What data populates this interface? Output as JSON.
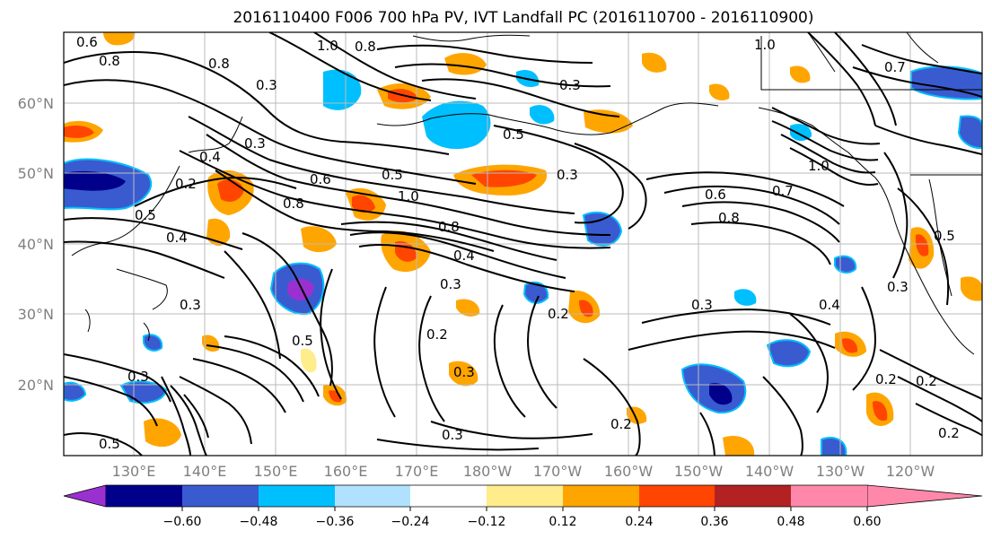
{
  "title": "2016110400 F006 700 hPa PV, IVT Landfall PC (2016110700 - 2016110900)",
  "map": {
    "lat_labels": [
      "60°N",
      "50°N",
      "40°N",
      "30°N",
      "20°N"
    ],
    "lon_labels": [
      "130°E",
      "140°E",
      "150°E",
      "160°E",
      "170°E",
      "180°W",
      "170°W",
      "160°W",
      "150°W",
      "140°W",
      "130°W",
      "120°W"
    ],
    "grid": true,
    "contour_labels": [
      "0.6",
      "0.8",
      "1.0",
      "0.8",
      "0.8",
      "0.3",
      "0.4",
      "1.0",
      "0.8",
      "0.2",
      "0.3",
      "0.5",
      "0.4",
      "0.3",
      "1.0",
      "0.6",
      "0.8",
      "0.6",
      "0.7",
      "0.8",
      "1.0",
      "0.5",
      "0.4",
      "0.5",
      "0.3",
      "0.3",
      "0.5",
      "0.2",
      "0.3",
      "0.3",
      "0.2",
      "0.3",
      "0.4",
      "0.3",
      "0.2",
      "0.2",
      "0.2",
      "0.3",
      "0.2",
      "0.5",
      "0.3",
      "0.5",
      "0.7"
    ]
  },
  "colorbar": {
    "colors": [
      "#9b30d0",
      "#00008b",
      "#3a5bd0",
      "#00bfff",
      "#b0e2ff",
      "#ffffff",
      "#ffec8b",
      "#ffa500",
      "#ff4500",
      "#b22222",
      "#ff88aa"
    ],
    "tick_labels": [
      "−0.60",
      "−0.48",
      "−0.36",
      "−0.24",
      "−0.12",
      "0.12",
      "0.24",
      "0.36",
      "0.48",
      "0.60"
    ],
    "extend": "both"
  }
}
